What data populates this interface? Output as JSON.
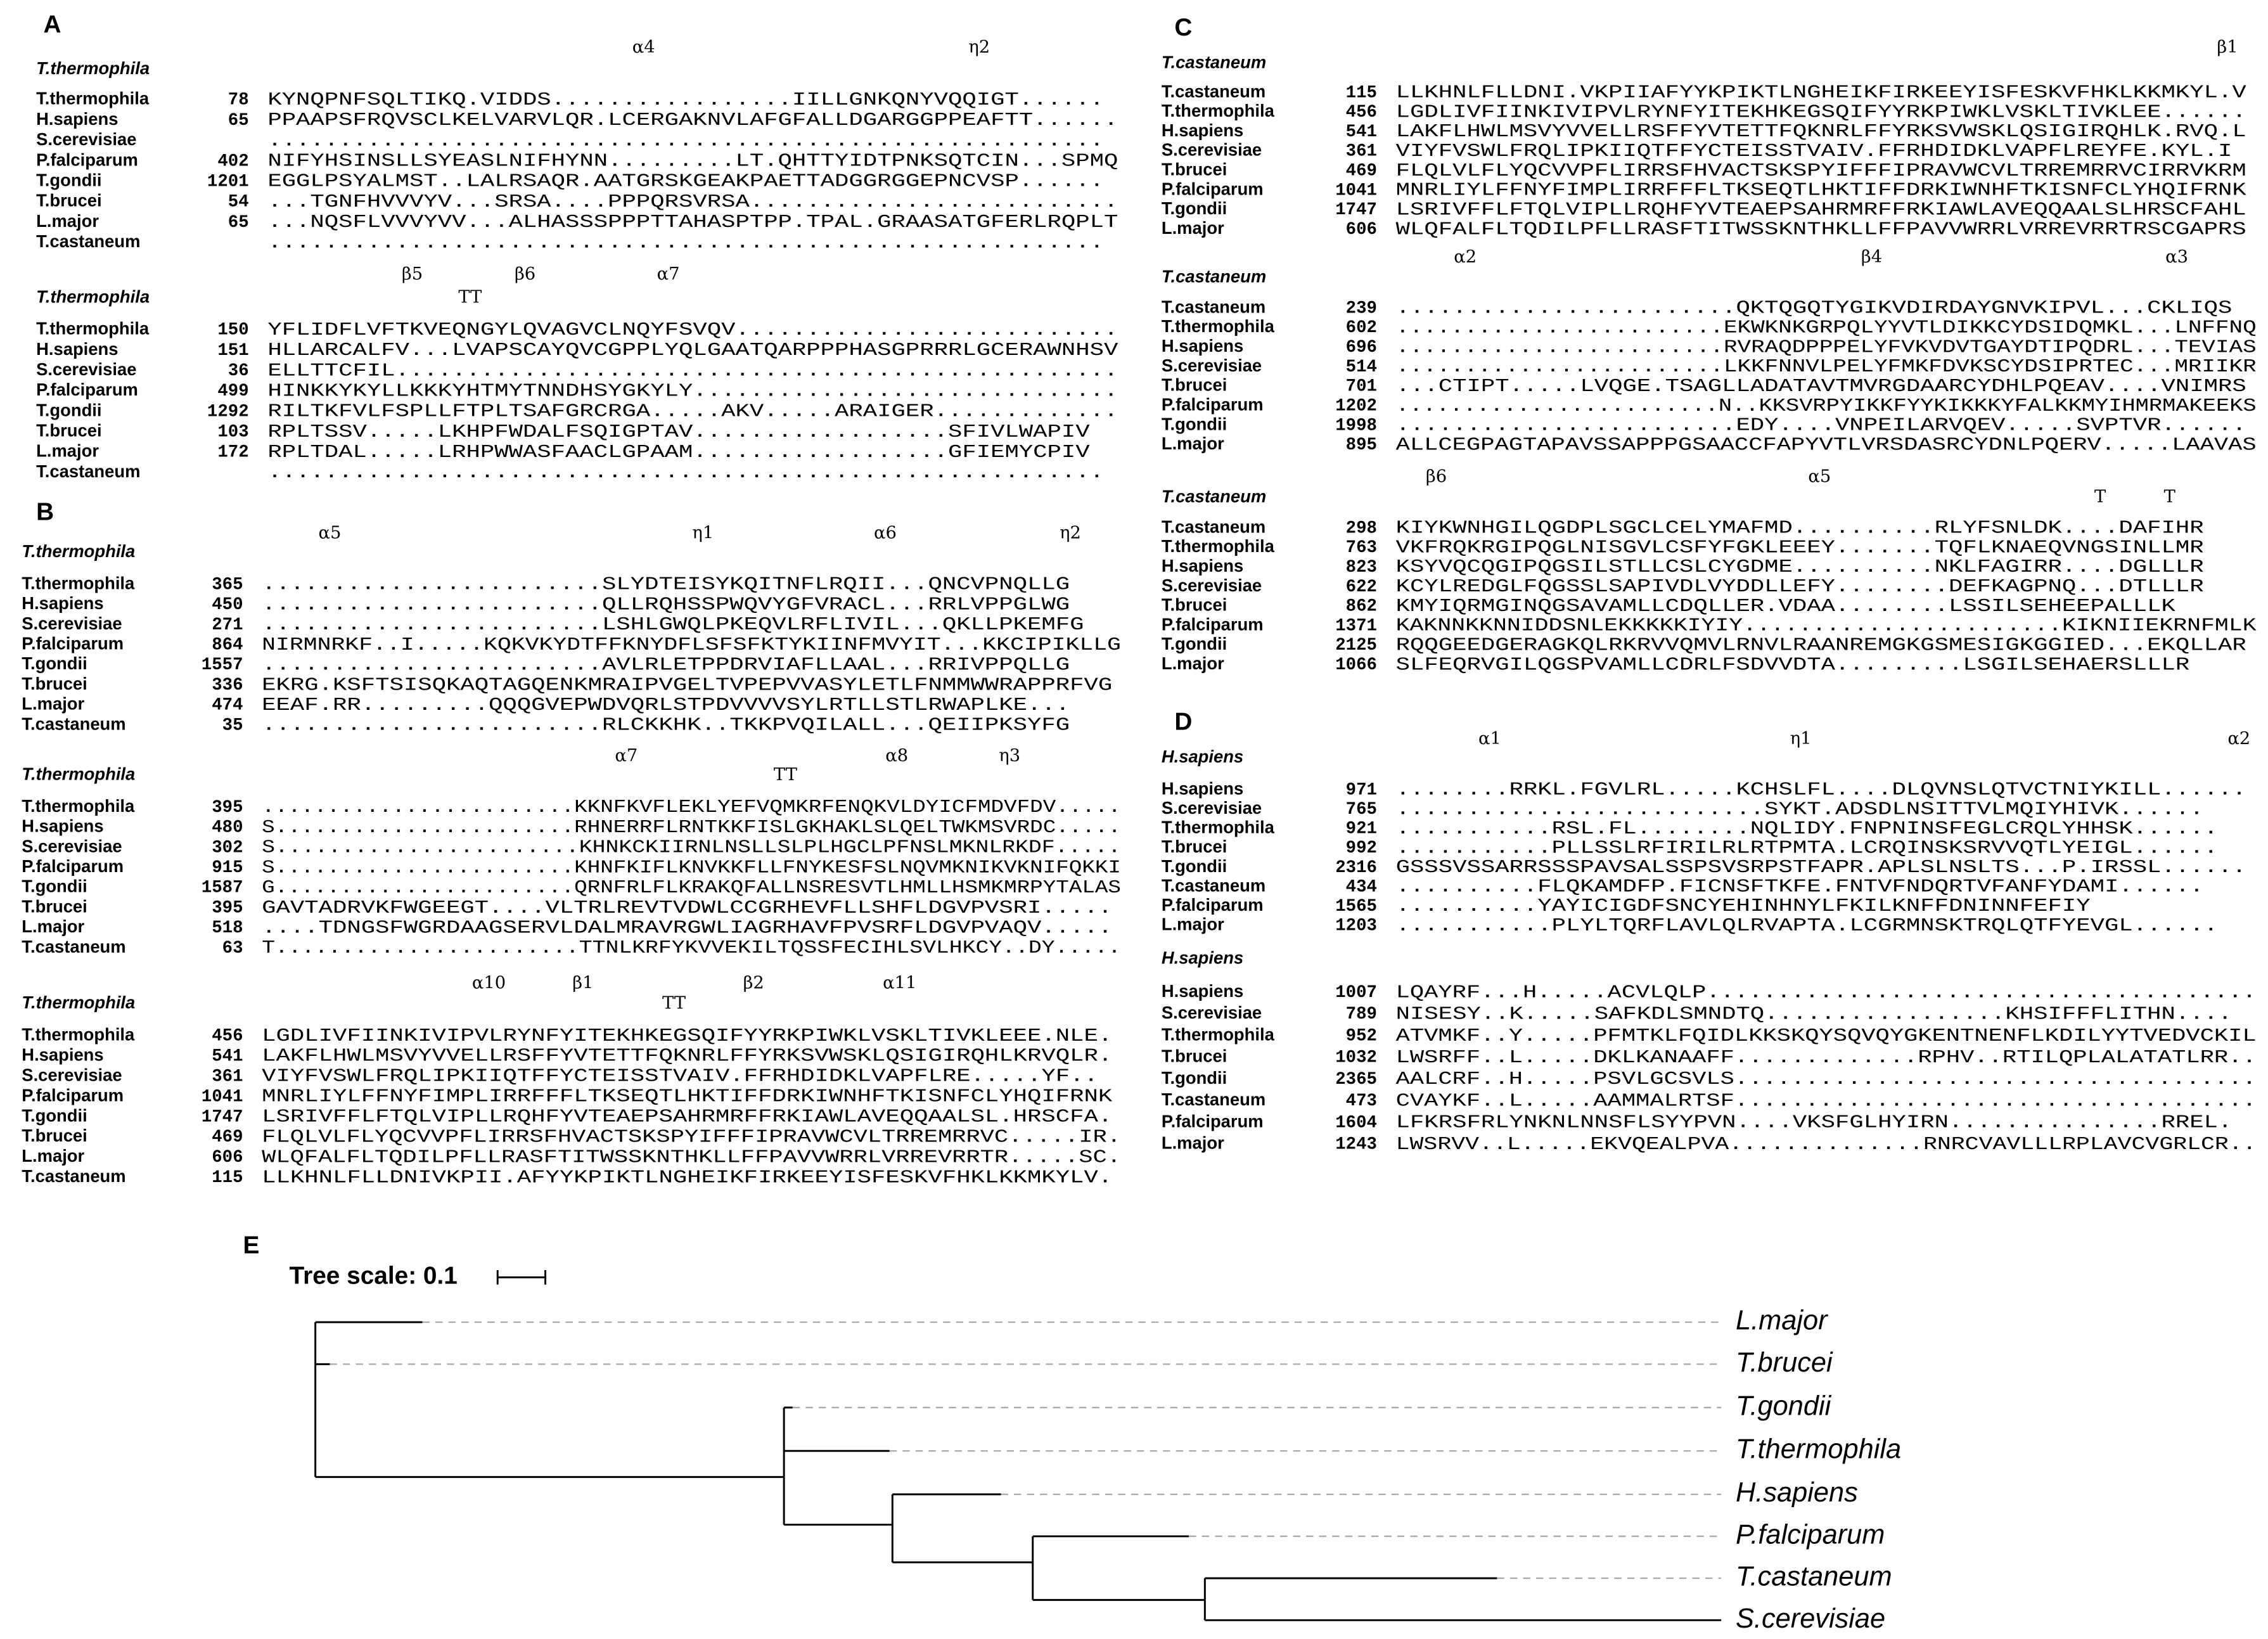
{
  "panels": [
    {
      "label": "A",
      "blocks": [
        {
          "ref": "T.thermophila",
          "ss": [
            "α4",
            "η2"
          ],
          "rows": [
            {
              "name": "T.thermophila",
              "start": 78,
              "seq": "KYNQPNFSQLTIKQ.VIDDS.................IILLGNKQNYVQQIGT......"
            },
            {
              "name": "H.sapiens",
              "start": 65,
              "seq": "PPAAPSFRQVSCLKELVARVLQR.LCERGAKNVLAFGFALLDGARGGPPEAFTT......"
            },
            {
              "name": "S.cerevisiae",
              "start": null,
              "seq": "..........................................................."
            },
            {
              "name": "P.falciparum",
              "start": 402,
              "seq": "NIFYHSINSLLSYEASLNIFHYNN.........LT.QHTTYIDTPNKSQTCIN...SPMQ"
            },
            {
              "name": "T.gondii",
              "start": 1201,
              "seq": "EGGLPSYALMST..LALRSAQR.AATGRSKGEAKPAETTADGGRGGEPNCVSP......"
            },
            {
              "name": "T.brucei",
              "start": 54,
              "seq": "...TGNFHVVVYV...SRSA....PPPQRSVRSA.........................."
            },
            {
              "name": "L.major",
              "start": 65,
              "seq": "...NQSFLVVVYVV...ALHASSSPPPTTAHASPTPP.TPAL.GRAASATGFERLRQPLT"
            },
            {
              "name": "T.castaneum",
              "start": null,
              "seq": "..........................................................."
            }
          ]
        },
        {
          "ref": "T.thermophila",
          "ss": [
            "β5",
            "β6",
            "TT",
            "α7"
          ],
          "rows": [
            {
              "name": "T.thermophila",
              "start": 150,
              "seq": "YFLIDFLVFTKVEQNGYLQVAGVCLNQYFSVQV..........................."
            },
            {
              "name": "H.sapiens",
              "start": 151,
              "seq": "HLLARCALFV...LVAPSCAYQVCGPPLYQLGAATQARPPPHASGPRRRLGCERAWNHSV"
            },
            {
              "name": "S.cerevisiae",
              "start": 36,
              "seq": "ELLTTCFIL..................................................."
            },
            {
              "name": "P.falciparum",
              "start": 499,
              "seq": "HINKKYKYLLKKKYHTMYTNNDHSYGKYLY.............................."
            },
            {
              "name": "T.gondii",
              "start": 1292,
              "seq": "RILTKFVLFSPLLFTPLTSAFGRCRGA.....AKV.....ARAIGER............."
            },
            {
              "name": "T.brucei",
              "start": 103,
              "seq": "RPLTSSV.....LKHPFWDALFSQIGPTAV..................SFIVLWAPIV"
            },
            {
              "name": "L.major",
              "start": 172,
              "seq": "RPLTDAL.....LRHPWWASFAACLGPAAM..................GFIEMYCPIV"
            },
            {
              "name": "T.castaneum",
              "start": null,
              "seq": "..........................................................."
            }
          ]
        }
      ]
    },
    {
      "label": "B",
      "blocks": [
        {
          "ref": "T.thermophila",
          "ss": [
            "α5",
            "η1",
            "α6",
            "η2"
          ],
          "rows": [
            {
              "name": "T.thermophila",
              "start": 365,
              "seq": "........................SLYDTEISYKQITNFLRQII...QNCVPNQLLG"
            },
            {
              "name": "H.sapiens",
              "start": 450,
              "seq": "........................QLLRQHSSPWQVYGFVRACL...RRLVPPGLWG"
            },
            {
              "name": "S.cerevisiae",
              "start": 271,
              "seq": "........................LSHLGWQLPKEQVLRFLIVIL...QKLLPKEMFG"
            },
            {
              "name": "P.falciparum",
              "start": 864,
              "seq": "NIRMNRKF..I.....KQKVKYDTFFKNYDFLSFSFKTYKIINFMVYIT...KKCIPIKLLG"
            },
            {
              "name": "T.gondii",
              "start": 1557,
              "seq": "........................AVLRLETPPDRVIAFLLAAL...RRIVPPQLLG"
            },
            {
              "name": "T.brucei",
              "start": 336,
              "seq": "EKRG.KSFTSISQKAQTAGQENKMRAIPVGELTVPEPVVASYLETLFNMMWWRAPPRFVG"
            },
            {
              "name": "L.major",
              "start": 474,
              "seq": "EEAF.RR.........QQQGVEPWDVQRLSTPDVVVVSYLRTLLSTLRWAPLKE..."
            },
            {
              "name": "T.castaneum",
              "start": 35,
              "seq": "........................RLCKKHK..TKKPVQILALL...QEIIPKSYFG"
            }
          ]
        },
        {
          "ref": "T.thermophila",
          "ss": [
            "α7",
            "TT",
            "α8",
            "η3"
          ],
          "rows": [
            {
              "name": "T.thermophila",
              "start": 395,
              "seq": "........................KKNFKVFLEKLYEFVQMKRFENQKVLDYICFMDVFDV....."
            },
            {
              "name": "H.sapiens",
              "start": 480,
              "seq": "S.......................RHNERRFLRNTKKFISLGKHAKLSLQELTWKMSVRDC....."
            },
            {
              "name": "S.cerevisiae",
              "start": 302,
              "seq": "S.......................KHNKCKIIRNLNSLLSLPLHGCLPFNSLMKNLRKDF....."
            },
            {
              "name": "P.falciparum",
              "start": 915,
              "seq": "S.......................KHNFKIFLKNVKKFLLFNYKESFSLNQVMKNIKVKNIFQKKI"
            },
            {
              "name": "T.gondii",
              "start": 1587,
              "seq": "G.......................QRNFRLFLKRAKQFALLNSRESVTLHMLLHSMKMRPYTALAS"
            },
            {
              "name": "T.brucei",
              "start": 395,
              "seq": "GAVTADRVKFWGEEGT....VLTRLREVTVDWLCCGRHEVFLLSHFLDGVPVSRI....."
            },
            {
              "name": "L.major",
              "start": 518,
              "seq": "....TDNGSFWGRDAAGSERVLDALMRAVRGWLIAGRHAVFPVSRFLDGVPVAQV....."
            },
            {
              "name": "T.castaneum",
              "start": 63,
              "seq": "T.......................TTNLKRFYKVVEKILTQSSFECIHLSVLHKCY..DY....."
            }
          ]
        },
        {
          "ref": "T.thermophila",
          "ss": [
            "α10",
            "β1",
            "TT",
            "β2",
            "α11"
          ],
          "rows": [
            {
              "name": "T.thermophila",
              "start": 456,
              "seq": "LGDLIVFIINKIVIPVLRYNFYITEKHKEGSQIFYYRKPIWKLVSKLTIVKLEEE.NLE."
            },
            {
              "name": "H.sapiens",
              "start": 541,
              "seq": "LAKFLHWLMSVYVVELLRSFFYVTETTFQKNRLFFYRKSVWSKLQSIGIRQHLKRVQLR."
            },
            {
              "name": "S.cerevisiae",
              "start": 361,
              "seq": "VIYFVSWLFRQLIPKIIQTFFYCTEISSTVAIV.FFRHDIDKLVAPFLRE.....YF.."
            },
            {
              "name": "P.falciparum",
              "start": 1041,
              "seq": "MNRLIYLFFNYFIMPLIRRFFFLTKSEQTLHKTIFFDRKIWNHFTKISNFCLYHQIFRNK"
            },
            {
              "name": "T.gondii",
              "start": 1747,
              "seq": "LSRIVFFLFTQLVIPLLRQHFYVTEAEPSAHRMRFFRKIAWLAVEQQAALSL.HRSCFA."
            },
            {
              "name": "T.brucei",
              "start": 469,
              "seq": "FLQLVLFLYQCVVPFLIRRSFHVACTSKSPYIFFFIPRAVWCVLTRREMRRVC.....IR."
            },
            {
              "name": "L.major",
              "start": 606,
              "seq": "WLQFALFLTQDILPFLLRASFTITWSSKNTHKLLFFPAVVWRRLVRREVRRTR.....SC."
            },
            {
              "name": "T.castaneum",
              "start": 115,
              "seq": "LLKHNLFLLDNIVKPII.AFYYKPIKTLNGHEIKFIRKEEYISFESKVFHKLKKMKYLV."
            }
          ]
        }
      ]
    },
    {
      "label": "C",
      "blocks": [
        {
          "ref": "T.castaneum",
          "ss": [
            "β1"
          ],
          "rows": [
            {
              "name": "T.castaneum",
              "start": 115,
              "seq": "LLKHNLFLLDNI.VKPIIAFYYKPIKTLNGHEIKFIRKEEYISFESKVFHKLKKMKYL.V"
            },
            {
              "name": "T.thermophila",
              "start": 456,
              "seq": "LGDLIVFIINKIVIPVLRYNFYITEKHKEGSQIFYYRKPIWKLVSKLTIVKLEE......"
            },
            {
              "name": "H.sapiens",
              "start": 541,
              "seq": "LAKFLHWLMSVYVVELLRSFFYVTETTFQKNRLFFYRKSVWSKLQSIGIRQHLK.RVQ.L"
            },
            {
              "name": "S.cerevisiae",
              "start": 361,
              "seq": "VIYFVSWLFRQLIPKIIQTFFYCTEISSTVAIV.FFRHDIDKLVAPFLREYFE.KYL.I"
            },
            {
              "name": "T.brucei",
              "start": 469,
              "seq": "FLQLVLFLYQCVVPFLIRRSFHVACTSKSPYIFFFIPRAVWCVLTRREMRRVCIRRVKRM"
            },
            {
              "name": "P.falciparum",
              "start": 1041,
              "seq": "MNRLIYLFFNYFIMPLIRRFFFLTKSEQTLHKTIFFDRKIWNHFTKISNFCLYHQIFRNK"
            },
            {
              "name": "T.gondii",
              "start": 1747,
              "seq": "LSRIVFFLFTQLVIPLLRQHFYVTEAEPSAHRMRFFRKIAWLAVEQQAALSLHRSCFAHL"
            },
            {
              "name": "L.major",
              "start": 606,
              "seq": "WLQFALFLTQDILPFLLRASFTITWSSKNTHKLLFFPAVVWRRLVRREVRRTRSCGAPRS"
            }
          ]
        },
        {
          "ref": "T.castaneum",
          "ss": [
            "α2",
            "β4",
            "α3"
          ],
          "rows": [
            {
              "name": "T.castaneum",
              "start": 239,
              "seq": "........................QKTQGQTYGIKVDIRDAYGNVKIPVL...CKLIQS"
            },
            {
              "name": "T.thermophila",
              "start": 602,
              "seq": "........................EKWKNKGRPQLYYVTLDIKKCYDSIDQMKL...LNFFNQ"
            },
            {
              "name": "H.sapiens",
              "start": 696,
              "seq": "........................RVRAQDPPPELYFVKVDVTGAYDTIPQDRL...TEVIAS"
            },
            {
              "name": "S.cerevisiae",
              "start": 514,
              "seq": "........................LKKFNNVLPELYFMKFDVKSCYDSIPRTEC...MRIIKR"
            },
            {
              "name": "T.brucei",
              "start": 701,
              "seq": "...CTIPT.....LVQGE.TSAGLLADATAVTMVRGDAARCYDHLPQEAV....VNIMRS"
            },
            {
              "name": "P.falciparum",
              "start": 1202,
              "seq": "........................N..KKSVRPYIKKFYYKIKKKYFALKKMYIHMRMAKEEKS"
            },
            {
              "name": "T.gondii",
              "start": 1998,
              "seq": "........................EDY....VNPEILARVQEV.....SVPTVR......"
            },
            {
              "name": "L.major",
              "start": 895,
              "seq": "ALLCEGPAGTAPAVSSAPPPGSAACCFAPYVTLVRSDASRCYDNLPQERV.....LAAVAS"
            }
          ]
        },
        {
          "ref": "T.castaneum",
          "ss": [
            "β6",
            "α5",
            "T",
            "T"
          ],
          "rows": [
            {
              "name": "T.castaneum",
              "start": 298,
              "seq": "KIYKWNHGILQGDPLSGCLCELYMAFMD..........RLYFSNLDK....DAFIHR"
            },
            {
              "name": "T.thermophila",
              "start": 763,
              "seq": "VKFRQKRGIPQGLNISGVLCSFYFGKLEEEY.......TQFLKNAEQVNGSINLLMR"
            },
            {
              "name": "H.sapiens",
              "start": 823,
              "seq": "KSYVQCQGIPQGSILSTLLCSLCYGDME..........NKLFAGIRR....DGLLLR"
            },
            {
              "name": "S.cerevisiae",
              "start": 622,
              "seq": "KCYLREDGLFQGSSLSAPIVDLVYDDLLEFY........DEFKAGPNQ...DTLLLR"
            },
            {
              "name": "T.brucei",
              "start": 862,
              "seq": "KMYIQRMGINQGSAVAMLLCDQLLER.VDAA........LSSILSEHEEPALLLK"
            },
            {
              "name": "P.falciparum",
              "start": 1371,
              "seq": "KAKNNKKNNIDDSNLEKKKKKIYIY.......................KIKNIIEKRNFMLK"
            },
            {
              "name": "T.gondii",
              "start": 2125,
              "seq": "RQQGEEDGERAGKQLRKRVVQMVLRNVLRAANREMGKGSMESIGKGGIED...EKQLLAR"
            },
            {
              "name": "L.major",
              "start": 1066,
              "seq": "SLFEQRVGILQGSPVAMLLCDRLFSDVVDTA.........LSGILSEHAERSLLLR"
            }
          ]
        }
      ]
    },
    {
      "label": "D",
      "blocks": [
        {
          "ref": "H.sapiens",
          "ss": [
            "α1",
            "η1",
            "α2"
          ],
          "rows": [
            {
              "name": "H.sapiens",
              "start": 971,
              "seq": "........RRKL.FGVLRL.....KCHSLFL....DLQVNSLQTVCTNIYKILL......"
            },
            {
              "name": "S.cerevisiae",
              "start": 765,
              "seq": "..........................SYKT.ADSDLNSITTVLMQIYHIVK......"
            },
            {
              "name": "T.thermophila",
              "start": 921,
              "seq": "...........RSL.FL........NQLIDY.FNPNINSFEGLCRQLYHHSK......"
            },
            {
              "name": "T.brucei",
              "start": 992,
              "seq": "...........PLLSSLRFIRILRLRTPMTA.LCRQINSKSRVVQTLYEIGL......"
            },
            {
              "name": "T.gondii",
              "start": 2316,
              "seq": "GSSSVSSARRSSSPAVSALSSPSVSRPSTFAPR.APLSLNSLTS...P.IRSSL......"
            },
            {
              "name": "T.castaneum",
              "start": 434,
              "seq": "..........FLQKAMDFP.FICNSFTKFE.FNTVFNDQRTVFANFYDAMI......"
            },
            {
              "name": "P.falciparum",
              "start": 1565,
              "seq": "..........YAYICIGDFSNCYEHINHNYLFKILKNFFDNINNFEFIY"
            },
            {
              "name": "L.major",
              "start": 1203,
              "seq": "...........PLYLTQRFLAVLQLRVAPTA.LCGRMNSKTRQLQTFYEVGL......"
            }
          ]
        },
        {
          "ref": "H.sapiens",
          "ss": [],
          "rows": [
            {
              "name": "H.sapiens",
              "start": 1007,
              "seq": "LQAYRF...H.....ACVLQLP......................................."
            },
            {
              "name": "S.cerevisiae",
              "start": 789,
              "seq": "NISESY..K.....SAFKDLSMNDTQ.................KHSIFFFLITHN...."
            },
            {
              "name": "T.thermophila",
              "start": 952,
              "seq": "ATVMKF..Y.....PFMTKLFQIDLKKSKQYSQVQYGKENTNENFLKDILYYTVEDVCKIL"
            },
            {
              "name": "T.brucei",
              "start": 1032,
              "seq": "LWSRFF..L.....DKLKANAAFF.............RPHV..RTILQPLALATATLRR.."
            },
            {
              "name": "T.gondii",
              "start": 2365,
              "seq": "AALCRF..H.....PSVLGCSVLS....................................."
            },
            {
              "name": "T.castaneum",
              "start": 473,
              "seq": "CVAYKF..L.....AAMMALRTSF....................................."
            },
            {
              "name": "P.falciparum",
              "start": 1604,
              "seq": "LFKRSFRLYNKNLNNSFLSYYPVN....VKSFGLHYIRN...............RREL."
            },
            {
              "name": "L.major",
              "start": 1243,
              "seq": "LWSRVV..L.....EKVQEALPVA..............RNRCVAVLLLRPLAVCVGRLCR.."
            }
          ]
        }
      ]
    }
  ],
  "tree": {
    "label": "E",
    "scale_label": "Tree scale: 0.1",
    "leaves": [
      "L.major",
      "T.brucei",
      "T.gondii",
      "T.thermophila",
      "H.sapiens",
      "P.falciparum",
      "T.castaneum",
      "S.cerevisiae"
    ]
  }
}
